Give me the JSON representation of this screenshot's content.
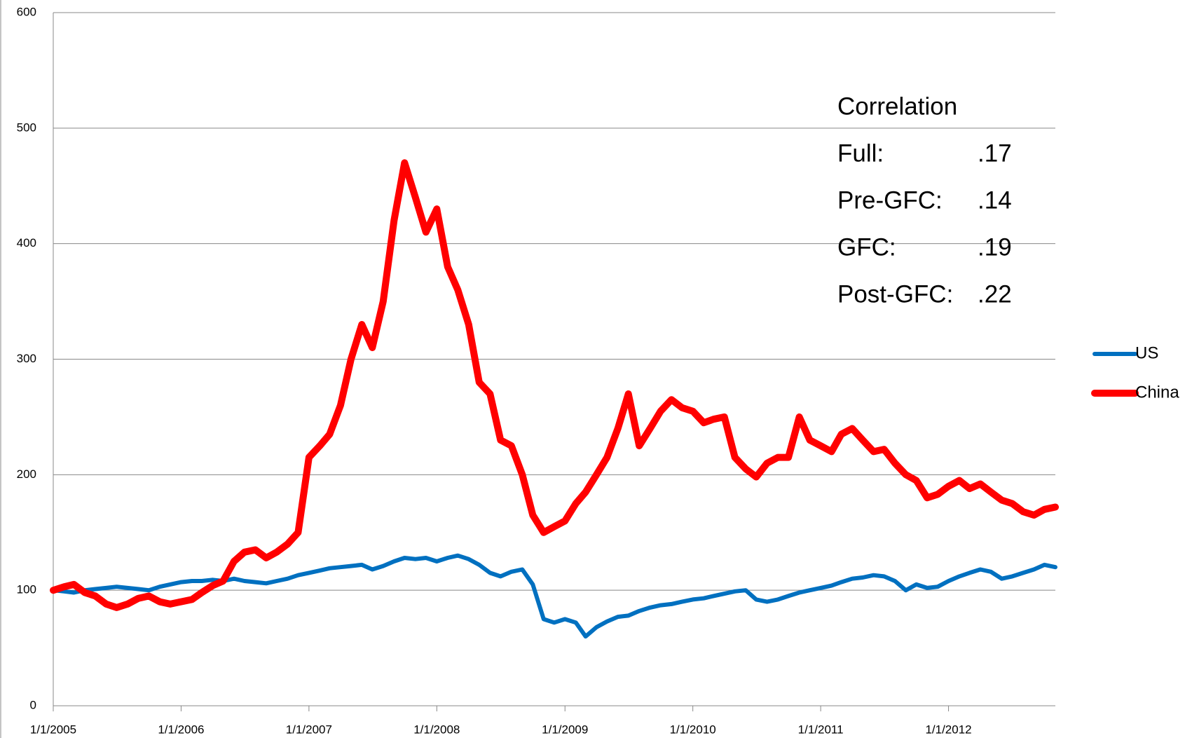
{
  "chart_data": {
    "type": "line",
    "x": [
      "2005-01-01",
      "2005-02-01",
      "2005-03-01",
      "2005-04-01",
      "2005-05-01",
      "2005-06-01",
      "2005-07-01",
      "2005-08-01",
      "2005-09-01",
      "2005-10-01",
      "2005-11-01",
      "2005-12-01",
      "2006-01-01",
      "2006-02-01",
      "2006-03-01",
      "2006-04-01",
      "2006-05-01",
      "2006-06-01",
      "2006-07-01",
      "2006-08-01",
      "2006-09-01",
      "2006-10-01",
      "2006-11-01",
      "2006-12-01",
      "2007-01-01",
      "2007-02-01",
      "2007-03-01",
      "2007-04-01",
      "2007-05-01",
      "2007-06-01",
      "2007-07-01",
      "2007-08-01",
      "2007-09-01",
      "2007-10-01",
      "2007-11-01",
      "2007-12-01",
      "2008-01-01",
      "2008-02-01",
      "2008-03-01",
      "2008-04-01",
      "2008-05-01",
      "2008-06-01",
      "2008-07-01",
      "2008-08-01",
      "2008-09-01",
      "2008-10-01",
      "2008-11-01",
      "2008-12-01",
      "2009-01-01",
      "2009-02-01",
      "2009-03-01",
      "2009-04-01",
      "2009-05-01",
      "2009-06-01",
      "2009-07-01",
      "2009-08-01",
      "2009-09-01",
      "2009-10-01",
      "2009-11-01",
      "2009-12-01",
      "2010-01-01",
      "2010-02-01",
      "2010-03-01",
      "2010-04-01",
      "2010-05-01",
      "2010-06-01",
      "2010-07-01",
      "2010-08-01",
      "2010-09-01",
      "2010-10-01",
      "2010-11-01",
      "2010-12-01",
      "2011-01-01",
      "2011-02-01",
      "2011-03-01",
      "2011-04-01",
      "2011-05-01",
      "2011-06-01",
      "2011-07-01",
      "2011-08-01",
      "2011-09-01",
      "2011-10-01",
      "2011-11-01",
      "2011-12-01",
      "2012-01-01",
      "2012-02-01",
      "2012-03-01",
      "2012-04-01",
      "2012-05-01",
      "2012-06-01",
      "2012-07-01",
      "2012-08-01",
      "2012-09-01",
      "2012-10-01",
      "2012-11-01"
    ],
    "series": [
      {
        "name": "US",
        "color": "#0070c0",
        "values": [
          100,
          99,
          98,
          100,
          101,
          102,
          103,
          102,
          101,
          100,
          103,
          105,
          107,
          108,
          108,
          109,
          108,
          110,
          108,
          107,
          106,
          108,
          110,
          113,
          115,
          117,
          119,
          120,
          121,
          122,
          118,
          121,
          125,
          128,
          127,
          128,
          125,
          128,
          130,
          127,
          122,
          115,
          112,
          116,
          118,
          105,
          75,
          72,
          75,
          72,
          60,
          68,
          73,
          77,
          78,
          82,
          85,
          87,
          88,
          90,
          92,
          93,
          95,
          97,
          99,
          100,
          92,
          90,
          92,
          95,
          98,
          100,
          102,
          104,
          107,
          110,
          111,
          113,
          112,
          108,
          100,
          105,
          102,
          103,
          108,
          112,
          115,
          118,
          116,
          110,
          112,
          115,
          118,
          122,
          120
        ]
      },
      {
        "name": "China",
        "color": "#ff0000",
        "values": [
          100,
          103,
          105,
          98,
          95,
          88,
          85,
          88,
          93,
          95,
          90,
          88,
          90,
          92,
          98,
          104,
          108,
          125,
          133,
          135,
          128,
          133,
          140,
          150,
          215,
          225,
          235,
          260,
          300,
          330,
          310,
          350,
          420,
          470,
          440,
          410,
          430,
          380,
          360,
          330,
          280,
          270,
          230,
          225,
          200,
          165,
          150,
          155,
          160,
          175,
          185,
          200,
          215,
          240,
          270,
          225,
          240,
          255,
          265,
          258,
          255,
          245,
          248,
          250,
          215,
          205,
          198,
          210,
          215,
          215,
          250,
          230,
          225,
          220,
          235,
          240,
          230,
          220,
          222,
          210,
          200,
          195,
          180,
          183,
          190,
          195,
          188,
          192,
          185,
          178,
          175,
          168,
          165,
          170,
          172
        ]
      }
    ],
    "xlim": [
      "2005-01-01",
      "2012-11-01"
    ],
    "xticks": [
      {
        "value": "2005-01-01",
        "label": "1/1/2005"
      },
      {
        "value": "2006-01-01",
        "label": "1/1/2006"
      },
      {
        "value": "2007-01-01",
        "label": "1/1/2007"
      },
      {
        "value": "2008-01-01",
        "label": "1/1/2008"
      },
      {
        "value": "2009-01-01",
        "label": "1/1/2009"
      },
      {
        "value": "2010-01-01",
        "label": "1/1/2010"
      },
      {
        "value": "2011-01-01",
        "label": "1/1/2011"
      },
      {
        "value": "2012-01-01",
        "label": "1/1/2012"
      }
    ],
    "ylim": [
      0,
      600
    ],
    "yticks": [
      0,
      100,
      200,
      300,
      400,
      500,
      600
    ],
    "grid": true,
    "legend": "right",
    "annotation": {
      "title": "Correlation",
      "rows": [
        {
          "label": "Full:",
          "value": ".17"
        },
        {
          "label": "Pre-GFC:",
          "value": ".14"
        },
        {
          "label": "GFC:",
          "value": ".19"
        },
        {
          "label": "Post-GFC:",
          "value": ".22"
        }
      ]
    }
  }
}
